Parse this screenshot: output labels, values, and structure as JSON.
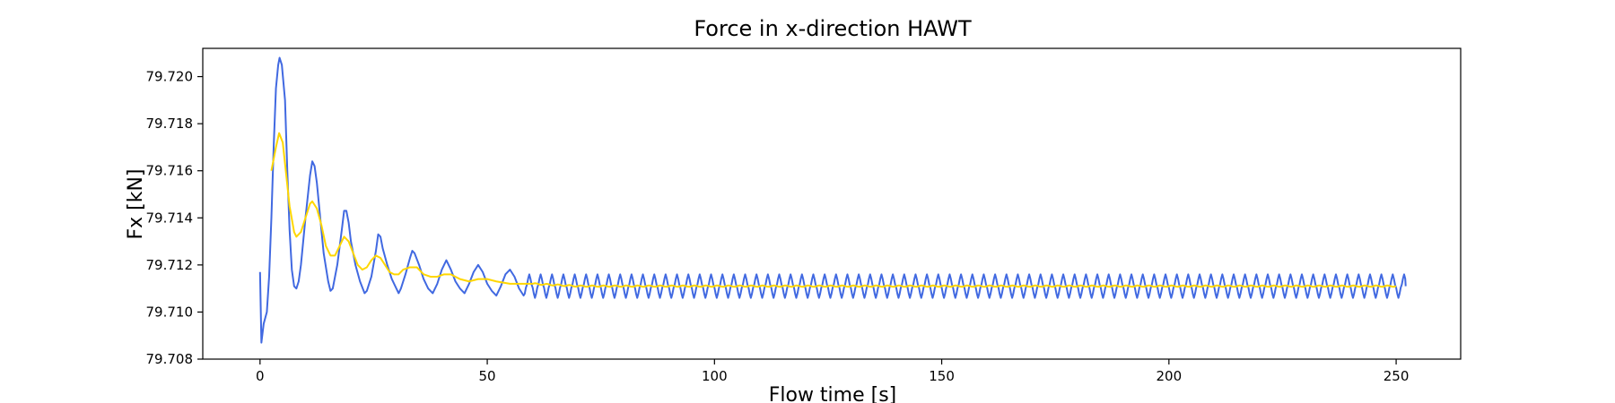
{
  "chart_data": {
    "type": "line",
    "title": "Force in x-direction HAWT",
    "xlabel": "Flow time [s]",
    "ylabel": "Fx [kN]",
    "xlim": [
      -12.6,
      264.2
    ],
    "ylim": [
      79.708,
      79.7212
    ],
    "xticks": [
      0,
      50,
      100,
      150,
      200,
      250
    ],
    "xtick_labels": [
      "0",
      "50",
      "100",
      "150",
      "200",
      "250"
    ],
    "yticks": [
      79.708,
      79.71,
      79.712,
      79.714,
      79.716,
      79.718,
      79.72
    ],
    "ytick_labels": [
      "79.708",
      "79.710",
      "79.712",
      "79.714",
      "79.716",
      "79.718",
      "79.720"
    ],
    "grid": false,
    "legend": "none",
    "colors": {
      "raw": "#4169e1",
      "smoothed": "#ffd700"
    },
    "series": [
      {
        "id": "raw",
        "points": [
          [
            0.0,
            79.7117
          ],
          [
            0.3,
            79.7087
          ],
          [
            0.8,
            79.7095
          ],
          [
            1.5,
            79.71
          ],
          [
            2.0,
            79.7115
          ],
          [
            2.5,
            79.714
          ],
          [
            3.0,
            79.717
          ],
          [
            3.5,
            79.7195
          ],
          [
            4.0,
            79.7205
          ],
          [
            4.3,
            79.7208
          ],
          [
            4.8,
            79.7205
          ],
          [
            5.5,
            79.719
          ],
          [
            6.0,
            79.716
          ],
          [
            6.5,
            79.7135
          ],
          [
            7.0,
            79.7118
          ],
          [
            7.5,
            79.7111
          ],
          [
            8.0,
            79.711
          ],
          [
            8.5,
            79.7113
          ],
          [
            9.0,
            79.712
          ],
          [
            10.0,
            79.714
          ],
          [
            11.0,
            79.7158
          ],
          [
            11.5,
            79.7164
          ],
          [
            12.0,
            79.7162
          ],
          [
            12.5,
            79.7155
          ],
          [
            13.0,
            79.7145
          ],
          [
            14.0,
            79.7125
          ],
          [
            15.0,
            79.7113
          ],
          [
            15.5,
            79.7109
          ],
          [
            16.0,
            79.711
          ],
          [
            17.0,
            79.712
          ],
          [
            18.0,
            79.7135
          ],
          [
            18.5,
            79.7143
          ],
          [
            19.0,
            79.7143
          ],
          [
            19.5,
            79.7138
          ],
          [
            20.0,
            79.713
          ],
          [
            21.0,
            79.712
          ],
          [
            22.0,
            79.7113
          ],
          [
            23.0,
            79.7108
          ],
          [
            23.5,
            79.7109
          ],
          [
            24.5,
            79.7115
          ],
          [
            25.5,
            79.7126
          ],
          [
            26.0,
            79.7133
          ],
          [
            26.5,
            79.7132
          ],
          [
            27.0,
            79.7127
          ],
          [
            28.0,
            79.712
          ],
          [
            29.0,
            79.7114
          ],
          [
            30.0,
            79.711
          ],
          [
            30.5,
            79.7108
          ],
          [
            31.0,
            79.711
          ],
          [
            32.0,
            79.7116
          ],
          [
            33.0,
            79.7123
          ],
          [
            33.5,
            79.7126
          ],
          [
            34.0,
            79.7125
          ],
          [
            35.0,
            79.712
          ],
          [
            36.0,
            79.7114
          ],
          [
            37.0,
            79.711
          ],
          [
            38.0,
            79.7108
          ],
          [
            39.0,
            79.7112
          ],
          [
            40.0,
            79.7118
          ],
          [
            41.0,
            79.7122
          ],
          [
            42.0,
            79.7118
          ],
          [
            43.0,
            79.7113
          ],
          [
            44.0,
            79.711
          ],
          [
            45.0,
            79.7108
          ],
          [
            46.0,
            79.7112
          ],
          [
            47.0,
            79.7117
          ],
          [
            48.0,
            79.712
          ],
          [
            49.0,
            79.7117
          ],
          [
            50.0,
            79.7112
          ],
          [
            51.0,
            79.7109
          ],
          [
            52.0,
            79.7107
          ],
          [
            53.0,
            79.7111
          ],
          [
            54.0,
            79.7116
          ],
          [
            55.0,
            79.7118
          ],
          [
            56.0,
            79.7115
          ],
          [
            57.0,
            79.711
          ],
          [
            58.0,
            79.7107
          ]
        ],
        "periodic_tail": {
          "x_start": 58.0,
          "x_end": 252.0,
          "period": 2.5,
          "min": 79.7106,
          "max": 79.7116,
          "final_value": 79.7111
        }
      },
      {
        "id": "smoothed",
        "points": [
          [
            2.5,
            79.716
          ],
          [
            3.5,
            79.717
          ],
          [
            4.2,
            79.7176
          ],
          [
            5.0,
            79.7172
          ],
          [
            5.5,
            79.7163
          ],
          [
            6.5,
            79.7145
          ],
          [
            7.5,
            79.7134
          ],
          [
            8.0,
            79.7132
          ],
          [
            9.0,
            79.7134
          ],
          [
            10.0,
            79.714
          ],
          [
            11.0,
            79.7146
          ],
          [
            11.5,
            79.7147
          ],
          [
            12.5,
            79.7144
          ],
          [
            13.5,
            79.7137
          ],
          [
            14.5,
            79.7128
          ],
          [
            15.5,
            79.7124
          ],
          [
            16.5,
            79.7124
          ],
          [
            17.5,
            79.7128
          ],
          [
            18.5,
            79.7132
          ],
          [
            19.5,
            79.713
          ],
          [
            20.5,
            79.7125
          ],
          [
            21.5,
            79.712
          ],
          [
            22.5,
            79.7118
          ],
          [
            23.5,
            79.7119
          ],
          [
            24.5,
            79.7122
          ],
          [
            25.5,
            79.7124
          ],
          [
            26.5,
            79.7123
          ],
          [
            27.5,
            79.712
          ],
          [
            28.5,
            79.7117
          ],
          [
            29.5,
            79.7116
          ],
          [
            30.5,
            79.7116
          ],
          [
            31.5,
            79.7118
          ],
          [
            33.0,
            79.7119
          ],
          [
            34.5,
            79.7119
          ],
          [
            36.0,
            79.7116
          ],
          [
            37.5,
            79.7115
          ],
          [
            39.0,
            79.7115
          ],
          [
            40.5,
            79.7116
          ],
          [
            42.0,
            79.7116
          ],
          [
            44.0,
            79.7114
          ],
          [
            46.0,
            79.7113
          ],
          [
            48.0,
            79.7114
          ],
          [
            50.0,
            79.7114
          ],
          [
            52.0,
            79.7113
          ],
          [
            55.0,
            79.7112
          ],
          [
            60.0,
            79.7112
          ],
          [
            70.0,
            79.7111
          ],
          [
            100.0,
            79.7111
          ],
          [
            150.0,
            79.7111
          ],
          [
            200.0,
            79.7111
          ],
          [
            250.0,
            79.7111
          ]
        ],
        "tail_ripple": 3e-05,
        "tail_period": 2.5
      }
    ]
  }
}
